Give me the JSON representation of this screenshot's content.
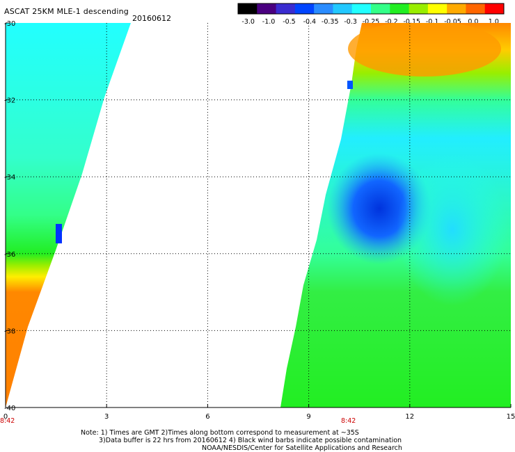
{
  "header": {
    "title": "ASCAT 25KM MLE-1 descending",
    "date": "20160612"
  },
  "colorbar": {
    "ticks": [
      "-3.0",
      "-1.0",
      "-0.5",
      "-0.4",
      "-0.35",
      "-0.3",
      "-0.25",
      "-0.2",
      "-0.15",
      "-0.1",
      "-0.05",
      "0.0",
      "1.0"
    ],
    "colors": [
      "#000000",
      "#4a0080",
      "#3a2cd0",
      "#0044ff",
      "#2a8cff",
      "#22c8ff",
      "#22ffff",
      "#33ff88",
      "#22ee22",
      "#99ee00",
      "#ffff00",
      "#ffaa00",
      "#ff6600",
      "#ff0000"
    ]
  },
  "times": {
    "left": "8:42",
    "right": "8:42"
  },
  "notes": {
    "line1": "Note: 1) Times are GMT 2)Times along bottom correspond to measurement at ~35S",
    "line2": "3)Data buffer is 22 hrs from 20160612 4) Black wind barbs indicate possible contamination",
    "line3": "NOAA/NESDIS/Center for Satellite Applications and Research"
  },
  "chart_data": {
    "type": "heatmap",
    "title": "ASCAT 25KM MLE-1 descending",
    "xlabel": "",
    "ylabel": "",
    "xlim": [
      0,
      15
    ],
    "ylim": [
      -40,
      -30
    ],
    "x_ticks": [
      "0",
      "3",
      "6",
      "9",
      "12",
      "15"
    ],
    "y_ticks": [
      "-30",
      "-32",
      "-34",
      "-36",
      "-38",
      "-40"
    ],
    "grid": true,
    "colorbar_range": [
      -3.0,
      1.0
    ],
    "swaths": [
      {
        "name": "",
        "x_range": [
          0,
          3.5
        ],
        "regions": [
          {
            "lat_range": [
              -30,
              -32.5
            ],
            "approx_value": -0.27,
            "color_desc": "cyan"
          },
          {
            "lat_range": [
              -32.5,
              -35
            ],
            "approx_value": -0.25,
            "color_desc": "cyan-green"
          },
          {
            "lat_range": [
              -35,
              -36.5
            ],
            "approx_value": -0.17,
            "color_desc": "green"
          },
          {
            "lat_range": [
              -36.5,
              -37.5
            ],
            "approx_value": -0.03,
            "color_desc": "yellow"
          },
          {
            "lat_range": [
              -37.5,
              -40
            ],
            "approx_value": 0.3,
            "color_desc": "orange"
          }
        ]
      },
      {
        "name": "",
        "x_range": [
          8.0,
          15
        ],
        "regions": [
          {
            "lat_range": [
              -30,
              -31
            ],
            "approx_value": 0.2,
            "color_desc": "orange"
          },
          {
            "lat_range": [
              -31,
              -32
            ],
            "approx_value": -0.08,
            "color_desc": "yellow-green"
          },
          {
            "lat_range": [
              -32,
              -34
            ],
            "approx_value": -0.27,
            "color_desc": "cyan"
          },
          {
            "lat_range": [
              -34,
              -36.5
            ],
            "approx_value": -0.38,
            "color_desc": "blue"
          },
          {
            "lat_range": [
              -36.5,
              -40
            ],
            "approx_value": -0.18,
            "color_desc": "green"
          }
        ]
      }
    ]
  }
}
